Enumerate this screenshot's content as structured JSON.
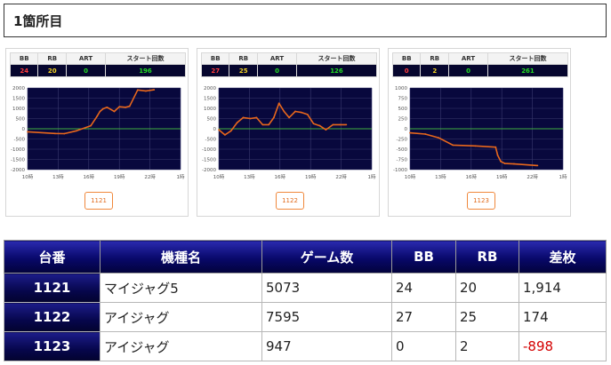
{
  "page": {
    "title": "1箇所目"
  },
  "colors": {
    "bb": "#ff3b3b",
    "rb": "#f3d324",
    "art": "#22dd22",
    "start": "#22dd22",
    "line": "#e8671c",
    "plot_bg": "#08083d",
    "zero_line": "#3fae3f",
    "negative": "#d40000"
  },
  "stat_headers": [
    "BB",
    "RB",
    "ART",
    "スタート回数"
  ],
  "charts": [
    {
      "stats": [
        "24",
        "20",
        "0",
        "196"
      ],
      "machine_button": "1121",
      "chart_data": {
        "type": "line",
        "ylim": [
          -2000,
          2000
        ],
        "yticks": [
          "2000",
          "1500",
          "1000",
          "500",
          "0",
          "-500",
          "-1000",
          "-1500",
          "-2000"
        ],
        "xticks": [
          "10時",
          "13時",
          "16時",
          "19時",
          "22時",
          "1時"
        ],
        "x": [
          10.0,
          12.7,
          13.6,
          14.8,
          16.2,
          16.8,
          17.1,
          17.4,
          17.8,
          18.5,
          19.0,
          19.6,
          20.0,
          20.8,
          21.6,
          22.4
        ],
        "y": [
          -150,
          -230,
          -240,
          -100,
          150,
          600,
          850,
          980,
          1050,
          850,
          1080,
          1050,
          1100,
          1900,
          1850,
          1910
        ]
      }
    },
    {
      "stats": [
        "27",
        "25",
        "0",
        "126"
      ],
      "machine_button": "1122",
      "chart_data": {
        "type": "line",
        "ylim": [
          -2000,
          2000
        ],
        "yticks": [
          "2000",
          "1500",
          "1000",
          "500",
          "0",
          "-500",
          "-1000",
          "-1500",
          "-2000"
        ],
        "xticks": [
          "10時",
          "13時",
          "16時",
          "19時",
          "22時",
          "1時"
        ],
        "x": [
          10.0,
          10.6,
          11.2,
          11.8,
          12.4,
          13.1,
          13.7,
          14.3,
          14.9,
          15.4,
          15.9,
          16.4,
          16.9,
          17.5,
          18.1,
          18.7,
          19.3,
          19.9,
          20.5,
          21.2,
          21.9,
          22.5
        ],
        "y": [
          -50,
          -300,
          -100,
          300,
          550,
          500,
          550,
          200,
          200,
          550,
          1250,
          850,
          550,
          850,
          800,
          700,
          250,
          150,
          -50,
          200,
          200,
          200
        ]
      }
    },
    {
      "stats": [
        "0",
        "2",
        "0",
        "261"
      ],
      "machine_button": "1123",
      "chart_data": {
        "type": "line",
        "ylim": [
          -1000,
          1000
        ],
        "yticks": [
          "1000",
          "750",
          "500",
          "250",
          "0",
          "-250",
          "-500",
          "-750",
          "-1000"
        ],
        "xticks": [
          "10時",
          "13時",
          "16時",
          "19時",
          "22時",
          "1時"
        ],
        "x": [
          10.0,
          11.5,
          12.8,
          14.2,
          16.4,
          18.4,
          18.6,
          18.9,
          19.3,
          20.2,
          22.5
        ],
        "y": [
          -100,
          -130,
          -220,
          -400,
          -420,
          -450,
          -650,
          -800,
          -850,
          -860,
          -900
        ]
      }
    }
  ],
  "table": {
    "headers": [
      "台番",
      "機種名",
      "ゲーム数",
      "BB",
      "RB",
      "差枚"
    ],
    "rows": [
      {
        "id": "1121",
        "name": "マイジャグ5",
        "games": "5073",
        "bb": "24",
        "rb": "20",
        "diff": "1,914"
      },
      {
        "id": "1122",
        "name": "アイジャグ",
        "games": "7595",
        "bb": "27",
        "rb": "25",
        "diff": "174"
      },
      {
        "id": "1123",
        "name": "アイジャグ",
        "games": "947",
        "bb": "0",
        "rb": "2",
        "diff": "-898"
      }
    ]
  }
}
